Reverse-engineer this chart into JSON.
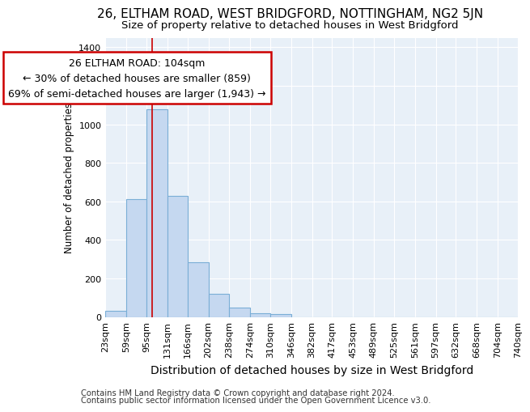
{
  "title1": "26, ELTHAM ROAD, WEST BRIDGFORD, NOTTINGHAM, NG2 5JN",
  "title2": "Size of property relative to detached houses in West Bridgford",
  "xlabel": "Distribution of detached houses by size in West Bridgford",
  "ylabel": "Number of detached properties",
  "bin_edges": [
    23,
    59,
    95,
    131,
    166,
    202,
    238,
    274,
    310,
    346,
    382,
    417,
    453,
    489,
    525,
    561,
    597,
    632,
    668,
    704,
    740
  ],
  "bar_heights": [
    30,
    610,
    1080,
    630,
    285,
    120,
    47,
    20,
    15,
    0,
    0,
    0,
    0,
    0,
    0,
    0,
    0,
    0,
    0,
    0
  ],
  "bar_color": "#c5d8f0",
  "bar_edge_color": "#7aaed6",
  "bar_edge_width": 0.8,
  "vline_x": 104,
  "vline_color": "#cc0000",
  "annotation_line1": "26 ELTHAM ROAD: 104sqm",
  "annotation_line2": "← 30% of detached houses are smaller (859)",
  "annotation_line3": "69% of semi-detached houses are larger (1,943) →",
  "annotation_box_color": "#ffffff",
  "annotation_box_edge_color": "#cc0000",
  "ylim": [
    0,
    1450
  ],
  "yticks": [
    0,
    200,
    400,
    600,
    800,
    1000,
    1200,
    1400
  ],
  "bg_color": "#e8f0f8",
  "grid_color": "#ffffff",
  "footer1": "Contains HM Land Registry data © Crown copyright and database right 2024.",
  "footer2": "Contains public sector information licensed under the Open Government Licence v3.0.",
  "title1_fontsize": 11,
  "title2_fontsize": 9.5,
  "xlabel_fontsize": 10,
  "ylabel_fontsize": 8.5,
  "tick_fontsize": 8,
  "annotation_fontsize": 9,
  "footer_fontsize": 7.2
}
